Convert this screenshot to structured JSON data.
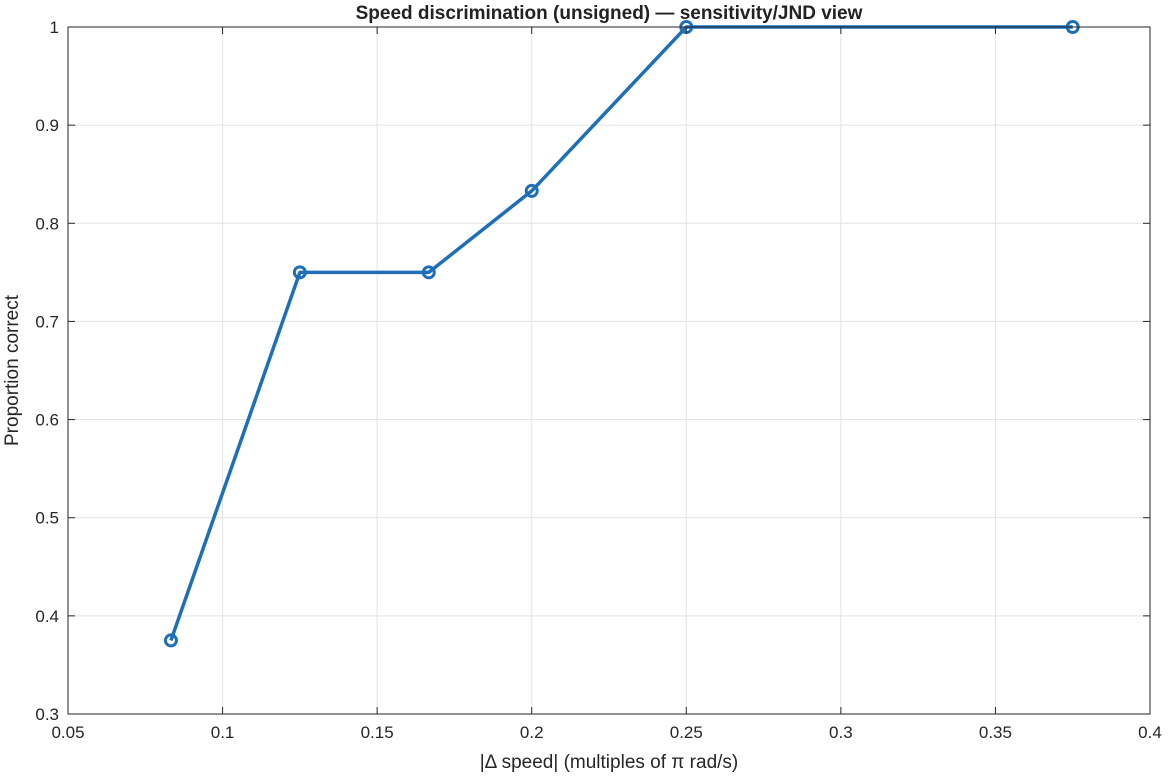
{
  "chart_data": {
    "type": "line",
    "title": "Speed discrimination (unsigned) — sensitivity/JND view",
    "xlabel": "|Δ  speed|  (multiples  of  π  rad/s)",
    "ylabel": "Proportion correct",
    "xlim": [
      0.05,
      0.4
    ],
    "ylim": [
      0.3,
      1.0
    ],
    "xticks": [
      0.05,
      0.1,
      0.15,
      0.2,
      0.25,
      0.3,
      0.35,
      0.4
    ],
    "yticks": [
      0.3,
      0.4,
      0.5,
      0.6,
      0.7,
      0.8,
      0.9,
      1.0
    ],
    "xtick_labels": [
      "0.05",
      "0.1",
      "0.15",
      "0.2",
      "0.25",
      "0.3",
      "0.35",
      "0.4"
    ],
    "ytick_labels": [
      "0.3",
      "0.4",
      "0.5",
      "0.6",
      "0.7",
      "0.8",
      "0.9",
      "1"
    ],
    "grid": true,
    "series": [
      {
        "color": "#1f6fb8",
        "marker": "circle",
        "x": [
          0.0833,
          0.125,
          0.1667,
          0.2,
          0.25,
          0.375
        ],
        "y": [
          0.375,
          0.75,
          0.75,
          0.833,
          1.0,
          1.0
        ]
      }
    ]
  }
}
